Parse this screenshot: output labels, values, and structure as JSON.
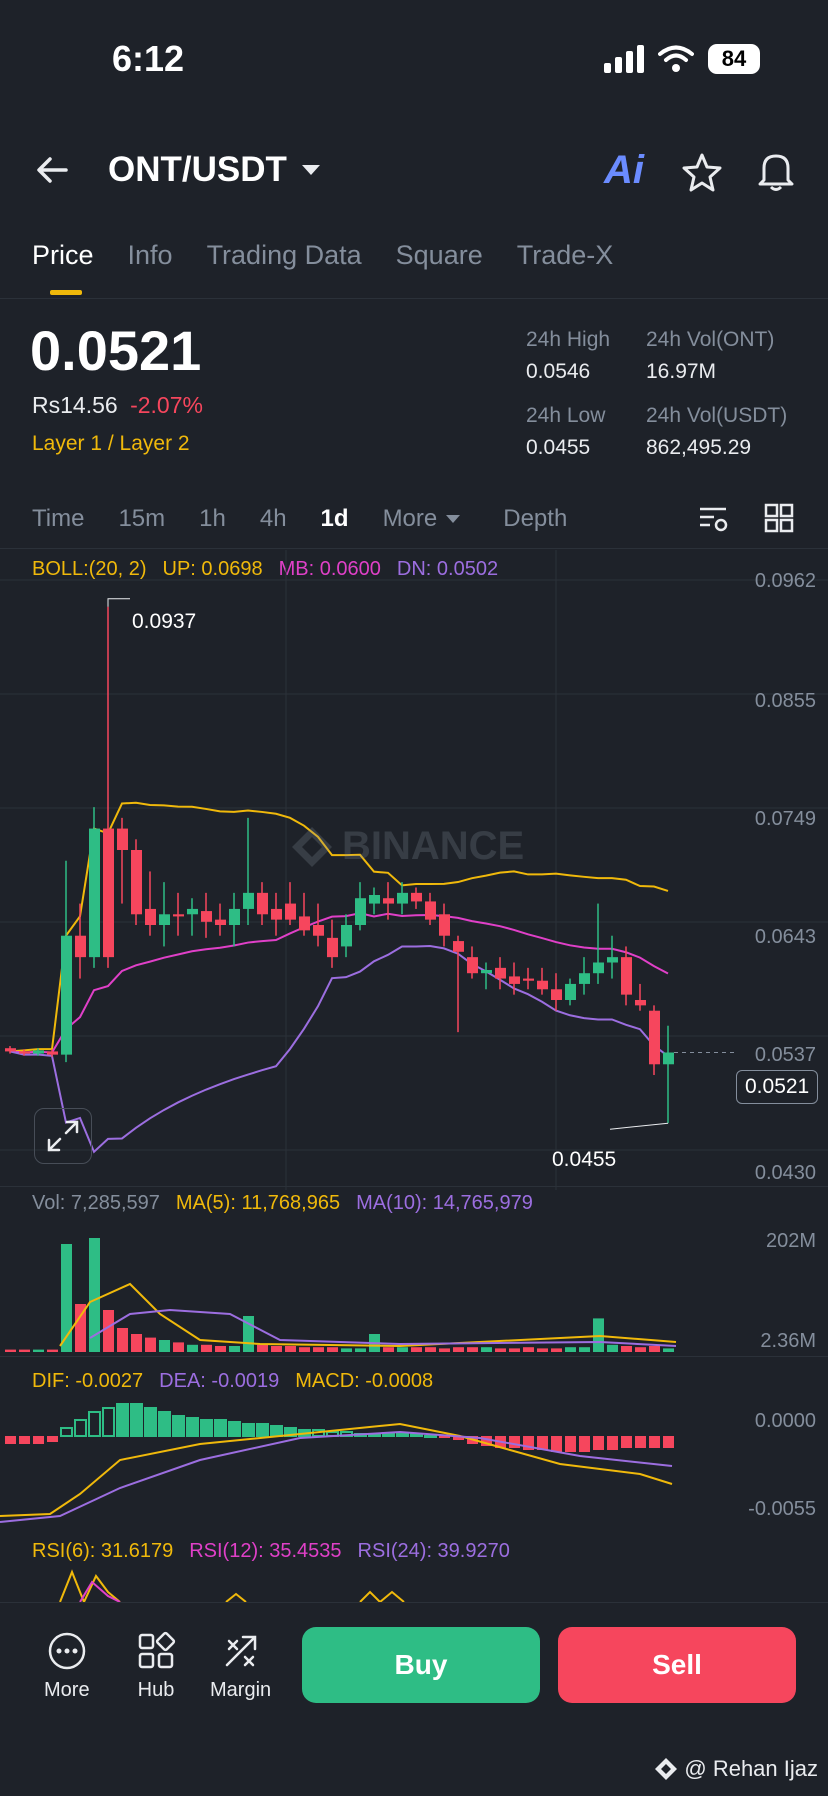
{
  "status_bar": {
    "time": "6:12",
    "battery": "84"
  },
  "header": {
    "pair": "ONT/USDT",
    "ai_label": "Ai"
  },
  "tabs": [
    {
      "label": "Price",
      "active": true
    },
    {
      "label": "Info"
    },
    {
      "label": "Trading Data"
    },
    {
      "label": "Square"
    },
    {
      "label": "Trade-X"
    }
  ],
  "ticker": {
    "last_price": "0.0521",
    "local_price": "Rs14.56",
    "change_pct": "-2.07%",
    "tags": "Layer 1 / Layer 2",
    "high_label": "24h High",
    "high": "0.0546",
    "low_label": "24h Low",
    "low": "0.0455",
    "vol_base_label": "24h Vol(ONT)",
    "vol_base": "16.97M",
    "vol_quote_label": "24h Vol(USDT)",
    "vol_quote": "862,495.29"
  },
  "timeframes": [
    "Time",
    "15m",
    "1h",
    "4h",
    "1d",
    "More",
    "Depth"
  ],
  "boll": {
    "label": "BOLL:(20, 2)",
    "up": "UP: 0.0698",
    "mb": "MB: 0.0600",
    "dn": "DN: 0.0502"
  },
  "price_axis": [
    "0.0962",
    "0.0855",
    "0.0749",
    "0.0643",
    "0.0537",
    "0.0430"
  ],
  "annotations": {
    "high": "0.0937",
    "low": "0.0455",
    "current": "0.0521"
  },
  "watermark": "BINANCE",
  "volume": {
    "vol": "Vol: 7,285,597",
    "ma5": "MA(5): 11,768,965",
    "ma10": "MA(10): 14,765,979",
    "axis_top": "202M",
    "axis_bottom": "2.36M"
  },
  "macd": {
    "dif": "DIF: -0.0027",
    "dea": "DEA: -0.0019",
    "macd": "MACD: -0.0008",
    "axis_top": "0.0000",
    "axis_bottom": "-0.0055"
  },
  "rsi": {
    "rsi6": "RSI(6): 31.6179",
    "rsi12": "RSI(12): 35.4535",
    "rsi24": "RSI(24): 39.9270"
  },
  "bottom_nav": [
    {
      "label": "More",
      "icon": "dots-circle-icon"
    },
    {
      "label": "Hub",
      "icon": "grid-icon"
    },
    {
      "label": "Margin",
      "icon": "margin-icon"
    }
  ],
  "actions": {
    "buy": "Buy",
    "sell": "Sell"
  },
  "credit": "@ Rehan Ijaz",
  "colors": {
    "up": "#2ebd85",
    "down": "#f6465d",
    "accent": "#f0b90b",
    "boll_up": "#f0b90b",
    "boll_mb": "#e040c8",
    "boll_dn": "#9c6ee0"
  },
  "chart_data": {
    "type": "candlestick",
    "yrange": [
      0.043,
      0.0962
    ],
    "candles": [
      [
        0.0525,
        0.0527,
        0.052,
        0.0522
      ],
      [
        0.0522,
        0.0524,
        0.0518,
        0.052
      ],
      [
        0.052,
        0.0525,
        0.0518,
        0.0523
      ],
      [
        0.0522,
        0.0524,
        0.0517,
        0.0519
      ],
      [
        0.0519,
        0.07,
        0.0512,
        0.063
      ],
      [
        0.063,
        0.066,
        0.059,
        0.061
      ],
      [
        0.061,
        0.075,
        0.06,
        0.073
      ],
      [
        0.073,
        0.0937,
        0.06,
        0.061
      ],
      [
        0.073,
        0.074,
        0.066,
        0.071
      ],
      [
        0.071,
        0.072,
        0.064,
        0.065
      ],
      [
        0.0655,
        0.069,
        0.063,
        0.064
      ],
      [
        0.064,
        0.068,
        0.062,
        0.065
      ],
      [
        0.065,
        0.067,
        0.063,
        0.0648
      ],
      [
        0.065,
        0.0665,
        0.063,
        0.0655
      ],
      [
        0.0653,
        0.067,
        0.0628,
        0.0643
      ],
      [
        0.0645,
        0.066,
        0.063,
        0.064
      ],
      [
        0.064,
        0.067,
        0.062,
        0.0655
      ],
      [
        0.0655,
        0.074,
        0.064,
        0.067
      ],
      [
        0.067,
        0.068,
        0.064,
        0.065
      ],
      [
        0.0655,
        0.067,
        0.063,
        0.0645
      ],
      [
        0.066,
        0.068,
        0.064,
        0.0645
      ],
      [
        0.0648,
        0.067,
        0.063,
        0.0635
      ],
      [
        0.064,
        0.066,
        0.062,
        0.063
      ],
      [
        0.0628,
        0.0645,
        0.06,
        0.061
      ],
      [
        0.062,
        0.065,
        0.061,
        0.064
      ],
      [
        0.064,
        0.068,
        0.0635,
        0.0665
      ],
      [
        0.066,
        0.0675,
        0.065,
        0.0668
      ],
      [
        0.0665,
        0.068,
        0.0645,
        0.066
      ],
      [
        0.066,
        0.068,
        0.065,
        0.067
      ],
      [
        0.067,
        0.0675,
        0.0655,
        0.0662
      ],
      [
        0.0662,
        0.067,
        0.064,
        0.0645
      ],
      [
        0.065,
        0.066,
        0.062,
        0.063
      ],
      [
        0.0625,
        0.063,
        0.054,
        0.0615
      ],
      [
        0.061,
        0.062,
        0.059,
        0.0595
      ],
      [
        0.0595,
        0.0605,
        0.058,
        0.0598
      ],
      [
        0.06,
        0.061,
        0.058,
        0.059
      ],
      [
        0.0592,
        0.0605,
        0.0575,
        0.0585
      ],
      [
        0.059,
        0.06,
        0.058,
        0.0588
      ],
      [
        0.0588,
        0.06,
        0.0575,
        0.058
      ],
      [
        0.058,
        0.0595,
        0.056,
        0.057
      ],
      [
        0.057,
        0.059,
        0.0565,
        0.0585
      ],
      [
        0.0585,
        0.061,
        0.0575,
        0.0595
      ],
      [
        0.0595,
        0.066,
        0.0585,
        0.0605
      ],
      [
        0.0605,
        0.063,
        0.059,
        0.061
      ],
      [
        0.061,
        0.062,
        0.0565,
        0.0575
      ],
      [
        0.057,
        0.0585,
        0.056,
        0.0565
      ],
      [
        0.056,
        0.0565,
        0.05,
        0.051
      ],
      [
        0.051,
        0.0546,
        0.0455,
        0.0521
      ]
    ]
  }
}
